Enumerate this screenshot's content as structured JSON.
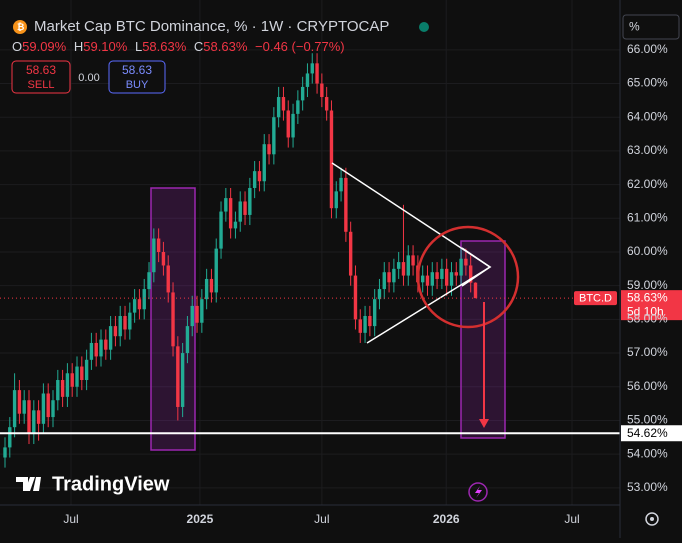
{
  "chart_data": {
    "type": "candlestick",
    "title": "Market Cap BTC Dominance, % · 1W · CRYPTOCAP",
    "ohlc_keys": [
      "O",
      "H",
      "L",
      "C"
    ],
    "ohlc_values": [
      "59.09%",
      "59.10%",
      "58.63%",
      "58.63%"
    ],
    "change": "−0.46 (−0.77%)",
    "sell_price": "58.63",
    "sell_label": "SELL",
    "spread": "0.00",
    "buy_price": "58.63",
    "buy_label": "BUY",
    "scale_mode": "%",
    "watermark": "TradingView",
    "symbol_label": "BTC.D",
    "last_value": 58.63,
    "last_value_label": "58.63%",
    "countdown": "5d 10h",
    "level": 54.62,
    "level_label": "54.62%",
    "up_color": "#22ab94",
    "down_color": "#f23645",
    "grid": true,
    "xlim": [
      -1.04,
      128.1
    ],
    "xticks": [
      {
        "value": 13.75,
        "label": "Jul"
      },
      {
        "value": 40.6,
        "label": "2025"
      },
      {
        "value": 66.0,
        "label": "Jul"
      },
      {
        "value": 91.9,
        "label": "2026"
      },
      {
        "value": 118.1,
        "label": "Jul"
      }
    ],
    "ylim": [
      52.49,
      67.48
    ],
    "yticks": [
      {
        "value": 53,
        "label": "53.00%"
      },
      {
        "value": 54,
        "label": "54.00%"
      },
      {
        "value": 55,
        "label": "55.00%"
      },
      {
        "value": 56,
        "label": "56.00%"
      },
      {
        "value": 57,
        "label": "57.00%"
      },
      {
        "value": 58,
        "label": "58.00%"
      },
      {
        "value": 59,
        "label": "59.00%"
      },
      {
        "value": 60,
        "label": "60.00%"
      },
      {
        "value": 61,
        "label": "61.00%"
      },
      {
        "value": 62,
        "label": "62.00%"
      },
      {
        "value": 63,
        "label": "63.00%"
      },
      {
        "value": 64,
        "label": "64.00%"
      },
      {
        "value": 65,
        "label": "65.00%"
      },
      {
        "value": 66,
        "label": "66.00%"
      }
    ],
    "open": [
      53.9,
      54.2,
      54.8,
      55.9,
      55.2,
      55.6,
      54.6,
      55.3,
      54.9,
      55.8,
      55.1,
      55.6,
      56.2,
      55.7,
      56.4,
      56.0,
      56.6,
      56.2,
      56.8,
      57.3,
      56.9,
      57.4,
      57.1,
      57.8,
      57.5,
      58.1,
      57.7,
      58.2,
      58.6,
      58.3,
      58.9,
      59.4,
      60.4,
      60.0,
      59.6,
      58.8,
      57.2,
      55.4,
      57.0,
      57.8,
      58.4,
      57.9,
      58.6,
      59.2,
      58.8,
      60.1,
      61.2,
      61.6,
      60.7,
      60.9,
      61.5,
      61.1,
      61.9,
      62.4,
      62.1,
      63.2,
      62.9,
      64.0,
      64.6,
      64.2,
      63.4,
      64.1,
      64.5,
      64.9,
      65.3,
      65.6,
      65.0,
      64.6,
      64.2,
      61.3,
      61.8,
      62.2,
      60.6,
      59.3,
      58.0,
      57.6,
      58.1,
      57.8,
      58.6,
      58.9,
      59.4,
      59.1,
      59.5,
      59.7,
      59.3,
      59.9,
      59.6,
      59.1,
      59.3,
      59.0,
      59.4,
      59.2,
      59.5,
      59.0,
      59.4,
      59.3,
      59.8,
      59.6,
      59.09
    ],
    "high": [
      54.5,
      55.1,
      56.4,
      56.2,
      55.9,
      55.9,
      55.6,
      55.6,
      56.1,
      56.1,
      55.9,
      56.5,
      56.5,
      56.7,
      56.7,
      56.9,
      56.9,
      57.1,
      57.6,
      57.6,
      57.7,
      57.7,
      58.1,
      58.1,
      58.4,
      58.4,
      58.5,
      58.9,
      58.9,
      59.2,
      59.7,
      60.7,
      60.7,
      60.3,
      59.9,
      59.1,
      57.5,
      57.3,
      58.1,
      58.7,
      58.7,
      58.9,
      59.5,
      59.5,
      60.4,
      61.5,
      61.9,
      61.9,
      61.2,
      61.8,
      61.8,
      62.2,
      62.7,
      62.7,
      63.5,
      63.5,
      64.3,
      64.9,
      64.9,
      64.5,
      64.4,
      64.8,
      65.2,
      65.6,
      65.9,
      65.9,
      65.3,
      64.9,
      64.5,
      62.1,
      62.5,
      62.5,
      60.9,
      59.6,
      58.3,
      58.4,
      58.4,
      58.9,
      59.2,
      59.7,
      59.7,
      59.8,
      60.0,
      61.4,
      60.2,
      60.2,
      59.9,
      59.6,
      59.6,
      59.7,
      59.7,
      59.8,
      59.8,
      59.7,
      59.7,
      60.1,
      60.1,
      59.9,
      59.1
    ],
    "low": [
      53.6,
      53.9,
      54.5,
      54.9,
      54.9,
      54.3,
      54.3,
      54.4,
      54.6,
      54.8,
      54.8,
      55.3,
      55.4,
      55.4,
      55.7,
      55.7,
      55.9,
      55.9,
      56.5,
      56.6,
      56.6,
      56.8,
      56.8,
      57.2,
      57.2,
      57.4,
      57.4,
      57.9,
      58.0,
      58.0,
      58.6,
      59.1,
      59.7,
      59.3,
      58.5,
      56.9,
      55.0,
      55.1,
      56.7,
      57.5,
      57.6,
      57.6,
      58.3,
      58.5,
      58.5,
      59.8,
      60.9,
      60.4,
      60.4,
      60.6,
      60.8,
      60.8,
      61.6,
      61.8,
      61.8,
      62.6,
      62.6,
      63.7,
      63.9,
      63.1,
      63.1,
      63.8,
      64.2,
      64.6,
      65.0,
      64.7,
      64.3,
      63.9,
      61.0,
      61.0,
      61.5,
      60.3,
      59.0,
      57.7,
      57.3,
      57.3,
      57.5,
      57.5,
      58.3,
      58.6,
      58.8,
      58.8,
      59.2,
      59.0,
      59.0,
      59.3,
      58.8,
      58.8,
      58.7,
      58.7,
      58.9,
      58.9,
      58.7,
      58.7,
      59.0,
      59.0,
      59.3,
      58.8,
      58.63
    ],
    "close": [
      54.2,
      54.8,
      55.9,
      55.2,
      55.6,
      54.6,
      55.3,
      54.9,
      55.8,
      55.1,
      55.6,
      56.2,
      55.7,
      56.4,
      56.0,
      56.6,
      56.2,
      56.8,
      57.3,
      56.9,
      57.4,
      57.1,
      57.8,
      57.5,
      58.1,
      57.7,
      58.2,
      58.6,
      58.3,
      58.9,
      59.4,
      60.4,
      60.0,
      59.6,
      58.8,
      57.2,
      55.4,
      57.0,
      57.8,
      58.4,
      57.9,
      58.6,
      59.2,
      58.8,
      60.1,
      61.2,
      61.6,
      60.7,
      60.9,
      61.5,
      61.1,
      61.9,
      62.4,
      62.1,
      63.2,
      62.9,
      64.0,
      64.6,
      64.2,
      63.4,
      64.1,
      64.5,
      64.9,
      65.3,
      65.6,
      65.0,
      64.6,
      64.2,
      61.3,
      61.8,
      62.2,
      60.6,
      59.3,
      58.0,
      57.6,
      58.1,
      57.8,
      58.6,
      58.9,
      59.4,
      59.1,
      59.5,
      59.7,
      59.3,
      59.9,
      59.6,
      59.1,
      59.3,
      59.0,
      59.4,
      59.2,
      59.5,
      59.0,
      59.4,
      59.3,
      59.8,
      59.6,
      59.09,
      58.63
    ]
  }
}
